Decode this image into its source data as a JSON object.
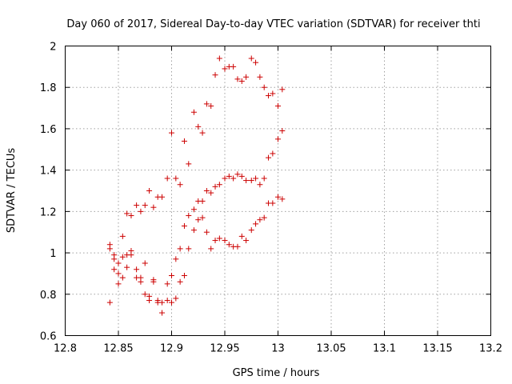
{
  "chart_data": {
    "type": "scatter",
    "title": "Day 060 of 2017, Sidereal Day-to-day VTEC variation (SDTVAR) for receiver thti",
    "xlabel": "GPS time / hours",
    "ylabel": "SDTVAR / TECUs",
    "xlim": [
      12.8,
      13.2
    ],
    "ylim": [
      0.6,
      2.0
    ],
    "xticks": [
      "12.8",
      "12.85",
      "12.9",
      "12.95",
      "13",
      "13.05",
      "13.1",
      "13.15",
      "13.2"
    ],
    "yticks": [
      "0.6",
      "0.8",
      "1",
      "1.2",
      "1.4",
      "1.6",
      "1.8",
      "2"
    ],
    "grid": true,
    "marker": "+",
    "color": "#cc0000",
    "series": [
      {
        "name": "SDTVAR",
        "points": [
          [
            12.842,
            0.76
          ],
          [
            12.842,
            1.04
          ],
          [
            12.842,
            1.02
          ],
          [
            12.846,
            0.99
          ],
          [
            12.846,
            0.97
          ],
          [
            12.846,
            0.92
          ],
          [
            12.85,
            0.95
          ],
          [
            12.85,
            0.9
          ],
          [
            12.85,
            0.85
          ],
          [
            12.854,
            1.08
          ],
          [
            12.854,
            0.98
          ],
          [
            12.854,
            0.88
          ],
          [
            12.858,
            1.19
          ],
          [
            12.858,
            0.99
          ],
          [
            12.858,
            0.93
          ],
          [
            12.862,
            1.18
          ],
          [
            12.862,
            1.01
          ],
          [
            12.862,
            0.99
          ],
          [
            12.867,
            1.23
          ],
          [
            12.867,
            0.92
          ],
          [
            12.867,
            0.88
          ],
          [
            12.871,
            1.2
          ],
          [
            12.871,
            0.88
          ],
          [
            12.871,
            0.86
          ],
          [
            12.875,
            1.23
          ],
          [
            12.875,
            0.95
          ],
          [
            12.875,
            0.8
          ],
          [
            12.879,
            1.3
          ],
          [
            12.879,
            0.79
          ],
          [
            12.879,
            0.77
          ],
          [
            12.883,
            1.22
          ],
          [
            12.883,
            0.87
          ],
          [
            12.883,
            0.86
          ],
          [
            12.887,
            1.27
          ],
          [
            12.887,
            0.77
          ],
          [
            12.887,
            0.76
          ],
          [
            12.891,
            1.27
          ],
          [
            12.891,
            0.76
          ],
          [
            12.891,
            0.71
          ],
          [
            12.896,
            1.36
          ],
          [
            12.896,
            0.85
          ],
          [
            12.896,
            0.77
          ],
          [
            12.9,
            1.58
          ],
          [
            12.9,
            0.89
          ],
          [
            12.9,
            0.76
          ],
          [
            12.904,
            1.36
          ],
          [
            12.904,
            0.97
          ],
          [
            12.904,
            0.78
          ],
          [
            12.908,
            1.33
          ],
          [
            12.908,
            1.02
          ],
          [
            12.908,
            0.86
          ],
          [
            12.912,
            1.54
          ],
          [
            12.912,
            1.13
          ],
          [
            12.912,
            0.89
          ],
          [
            12.916,
            1.43
          ],
          [
            12.916,
            1.18
          ],
          [
            12.916,
            1.02
          ],
          [
            12.921,
            1.68
          ],
          [
            12.921,
            1.21
          ],
          [
            12.921,
            1.11
          ],
          [
            12.925,
            1.61
          ],
          [
            12.925,
            1.25
          ],
          [
            12.925,
            1.16
          ],
          [
            12.929,
            1.58
          ],
          [
            12.929,
            1.25
          ],
          [
            12.929,
            1.17
          ],
          [
            12.933,
            1.72
          ],
          [
            12.933,
            1.3
          ],
          [
            12.933,
            1.1
          ],
          [
            12.937,
            1.71
          ],
          [
            12.937,
            1.29
          ],
          [
            12.937,
            1.02
          ],
          [
            12.941,
            1.86
          ],
          [
            12.941,
            1.32
          ],
          [
            12.941,
            1.06
          ],
          [
            12.945,
            1.94
          ],
          [
            12.945,
            1.33
          ],
          [
            12.945,
            1.07
          ],
          [
            12.95,
            1.89
          ],
          [
            12.95,
            1.36
          ],
          [
            12.95,
            1.06
          ],
          [
            12.954,
            1.9
          ],
          [
            12.954,
            1.37
          ],
          [
            12.954,
            1.04
          ],
          [
            12.958,
            1.9
          ],
          [
            12.958,
            1.36
          ],
          [
            12.958,
            1.03
          ],
          [
            12.962,
            1.84
          ],
          [
            12.962,
            1.38
          ],
          [
            12.962,
            1.03
          ],
          [
            12.966,
            1.83
          ],
          [
            12.966,
            1.37
          ],
          [
            12.966,
            1.08
          ],
          [
            12.97,
            1.85
          ],
          [
            12.97,
            1.35
          ],
          [
            12.97,
            1.06
          ],
          [
            12.975,
            1.94
          ],
          [
            12.975,
            1.35
          ],
          [
            12.975,
            1.11
          ],
          [
            12.979,
            1.92
          ],
          [
            12.979,
            1.36
          ],
          [
            12.979,
            1.14
          ],
          [
            12.983,
            1.85
          ],
          [
            12.983,
            1.33
          ],
          [
            12.983,
            1.16
          ],
          [
            12.987,
            1.8
          ],
          [
            12.987,
            1.36
          ],
          [
            12.987,
            1.17
          ],
          [
            12.991,
            1.76
          ],
          [
            12.991,
            1.46
          ],
          [
            12.991,
            1.24
          ],
          [
            12.995,
            1.77
          ],
          [
            12.995,
            1.48
          ],
          [
            12.995,
            1.24
          ],
          [
            13.0,
            1.71
          ],
          [
            13.0,
            1.55
          ],
          [
            13.0,
            1.27
          ],
          [
            13.004,
            1.79
          ],
          [
            13.004,
            1.59
          ],
          [
            13.004,
            1.26
          ]
        ]
      }
    ]
  }
}
